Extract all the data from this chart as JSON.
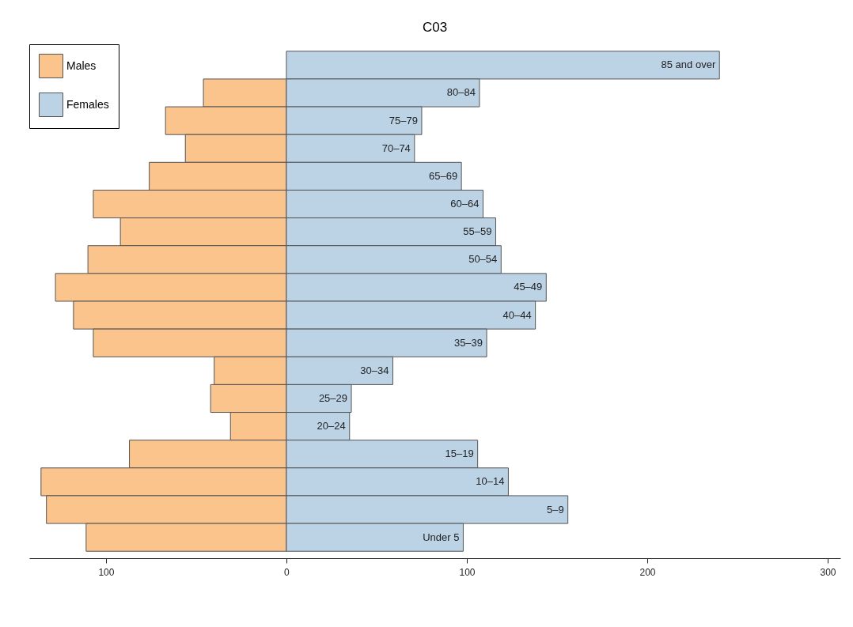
{
  "chart_data": {
    "type": "bar",
    "orientation": "horizontal",
    "title": "C03",
    "categories": [
      "85 and over",
      "80–84",
      "75–79",
      "70–74",
      "65–69",
      "60–64",
      "55–59",
      "50–54",
      "45–49",
      "40–44",
      "35–39",
      "30–34",
      "25–29",
      "20–24",
      "15–19",
      "10–14",
      "5–9",
      "Under 5"
    ],
    "series": [
      {
        "name": "Males",
        "color": "#fac48c",
        "values": [
          null,
          -46,
          -67,
          -56,
          -76,
          -107,
          -92,
          -110,
          -128,
          -118,
          -107,
          -40,
          -42,
          -31,
          -87,
          -136,
          -133,
          -111
        ]
      },
      {
        "name": "Females",
        "color": "#bcd3e6",
        "values": [
          240,
          107,
          75,
          71,
          97,
          109,
          116,
          119,
          144,
          138,
          111,
          59,
          36,
          35,
          106,
          123,
          156,
          98
        ]
      }
    ],
    "xlim": [
      -142.5,
      307
    ],
    "xticks": [
      {
        "value": -100,
        "label": "100"
      },
      0,
      100,
      200,
      300
    ],
    "tick_labels": "x",
    "grid": false,
    "legend": "top left",
    "stacked": true
  }
}
